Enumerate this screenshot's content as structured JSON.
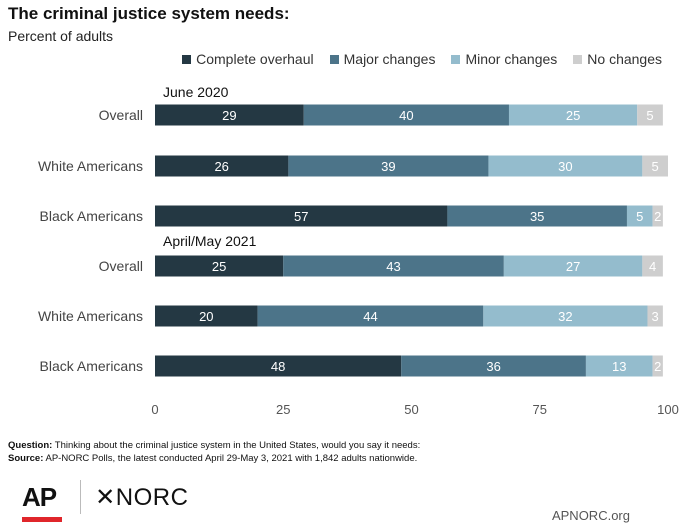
{
  "title": "The criminal justice system needs:",
  "subtitle": "Percent of adults",
  "chart_data": {
    "type": "bar",
    "orientation": "horizontal",
    "stacked": true,
    "categories": [
      "Overall",
      "White Americans",
      "Black Americans",
      "Overall",
      "White Americans",
      "Black Americans"
    ],
    "groups": [
      {
        "label": "June 2020",
        "rows": [
          0,
          1,
          2
        ]
      },
      {
        "label": "April/May 2021",
        "rows": [
          3,
          4,
          5
        ]
      }
    ],
    "series": [
      {
        "name": "Complete overhaul",
        "color": "#243843",
        "values": [
          29,
          26,
          57,
          25,
          20,
          48
        ]
      },
      {
        "name": "Major changes",
        "color": "#4c7489",
        "values": [
          40,
          39,
          35,
          43,
          44,
          36
        ]
      },
      {
        "name": "Minor changes",
        "color": "#94bccd",
        "values": [
          25,
          30,
          5,
          27,
          32,
          13
        ]
      },
      {
        "name": "No changes",
        "color": "#cecece",
        "values": [
          5,
          5,
          2,
          4,
          3,
          2
        ]
      }
    ],
    "xlim": [
      0,
      100
    ],
    "xticks": [
      0,
      25,
      50,
      75,
      100
    ],
    "grid": false,
    "legend": "top-right"
  },
  "footnote": {
    "question_label": "Question:",
    "question_text": " Thinking about the criminal justice system in the United States, would you say it needs:",
    "source_label": "Source:",
    "source_text": " AP-NORC Polls, the latest conducted April 29-May 3, 2021 with 1,842 adults nationwide."
  },
  "logos": {
    "ap": "AP",
    "norc": "✕NORC"
  },
  "website": "APNORC.org"
}
